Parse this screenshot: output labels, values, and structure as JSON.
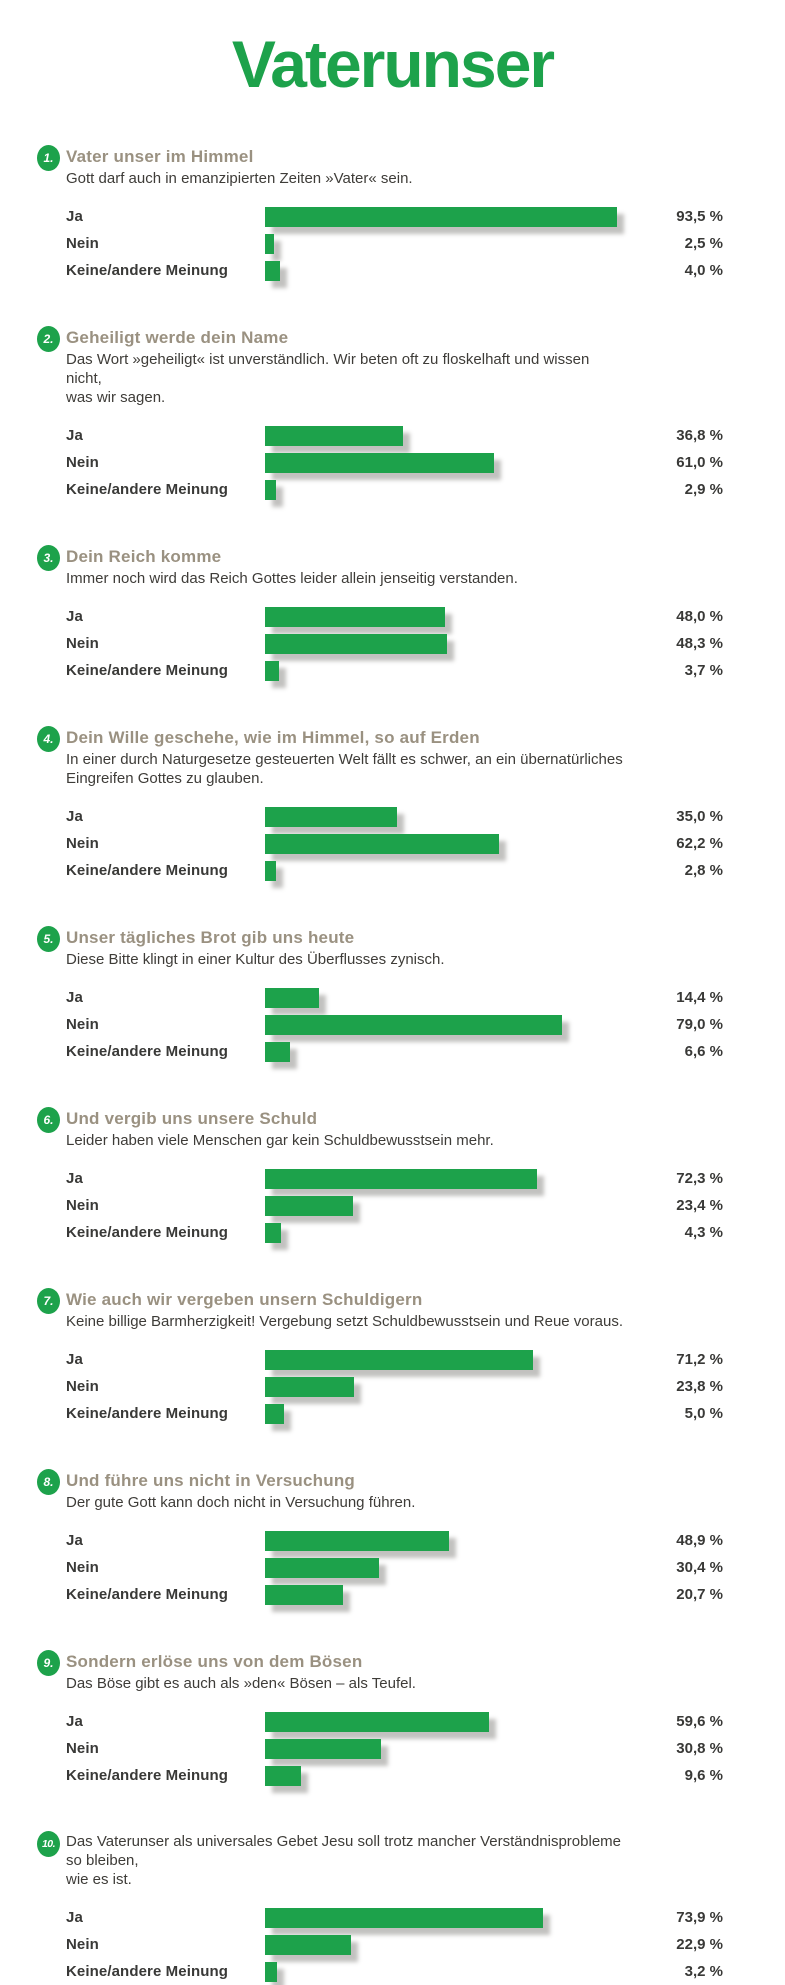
{
  "title": "Vaterunser",
  "colors": {
    "green": "#1da24b",
    "heading": "#9a9181",
    "text": "#3e3c38",
    "label": "#393937",
    "background": "#ffffff"
  },
  "chart_data": {
    "type": "bar",
    "title": "Vaterunser",
    "unit": "%",
    "xlim": [
      0,
      100
    ],
    "orientation": "horizontal",
    "categories": [
      "Ja",
      "Nein",
      "Keine/andere Meinung"
    ],
    "questions": [
      {
        "number": "1.",
        "heading": "Vater unser im Himmel",
        "description": "Gott darf auch in emanzipierten Zeiten »Vater« sein.",
        "values": [
          93.5,
          2.5,
          4.0
        ],
        "value_labels": [
          "93,5 %",
          "2,5 %",
          "4,0 %"
        ]
      },
      {
        "number": "2.",
        "heading": "Geheiligt werde dein Name",
        "description": "Das Wort »geheiligt« ist unverständlich. Wir beten oft zu floskelhaft und wissen nicht,\nwas wir sagen.",
        "values": [
          36.8,
          61.0,
          2.9
        ],
        "value_labels": [
          "36,8 %",
          "61,0 %",
          "2,9 %"
        ]
      },
      {
        "number": "3.",
        "heading": "Dein Reich komme",
        "description": "Immer noch wird das Reich Gottes leider allein jenseitig verstanden.",
        "values": [
          48.0,
          48.3,
          3.7
        ],
        "value_labels": [
          "48,0 %",
          "48,3 %",
          "3,7 %"
        ]
      },
      {
        "number": "4.",
        "heading": "Dein Wille geschehe, wie im Himmel, so auf Erden",
        "description": "In einer durch Naturgesetze gesteuerten Welt fällt es schwer, an ein übernatürliches\nEingreifen Gottes zu glauben.",
        "values": [
          35.0,
          62.2,
          2.8
        ],
        "value_labels": [
          "35,0 %",
          "62,2 %",
          "2,8 %"
        ]
      },
      {
        "number": "5.",
        "heading": "Unser tägliches Brot gib uns heute",
        "description": "Diese Bitte klingt in einer Kultur des Überflusses zynisch.",
        "values": [
          14.4,
          79.0,
          6.6
        ],
        "value_labels": [
          "14,4 %",
          "79,0 %",
          "6,6 %"
        ]
      },
      {
        "number": "6.",
        "heading": "Und vergib uns unsere Schuld",
        "description": "Leider haben viele Menschen gar kein Schuldbewusstsein mehr.",
        "values": [
          72.3,
          23.4,
          4.3
        ],
        "value_labels": [
          "72,3 %",
          "23,4 %",
          "4,3 %"
        ]
      },
      {
        "number": "7.",
        "heading": "Wie auch wir vergeben unsern Schuldigern",
        "description": "Keine billige Barmherzigkeit! Vergebung setzt Schuldbewusstsein und Reue voraus.",
        "values": [
          71.2,
          23.8,
          5.0
        ],
        "value_labels": [
          "71,2 %",
          "23,8 %",
          "5,0 %"
        ]
      },
      {
        "number": "8.",
        "heading": "Und führe uns nicht in Versuchung",
        "description": "Der gute Gott kann doch nicht in Versuchung führen.",
        "values": [
          48.9,
          30.4,
          20.7
        ],
        "value_labels": [
          "48,9 %",
          "30,4 %",
          "20,7 %"
        ]
      },
      {
        "number": "9.",
        "heading": "Sondern erlöse uns von dem Bösen",
        "description": "Das Böse gibt es auch als »den« Bösen – als Teufel.",
        "values": [
          59.6,
          30.8,
          9.6
        ],
        "value_labels": [
          "59,6 %",
          "30,8 %",
          "9,6 %"
        ]
      },
      {
        "number": "10.",
        "heading": "",
        "description": "Das Vaterunser als universales Gebet Jesu soll trotz mancher Verständnisprobleme so bleiben,\nwie es ist.",
        "values": [
          73.9,
          22.9,
          3.2
        ],
        "value_labels": [
          "73,9 %",
          "22,9 %",
          "3,2 %"
        ]
      }
    ]
  }
}
